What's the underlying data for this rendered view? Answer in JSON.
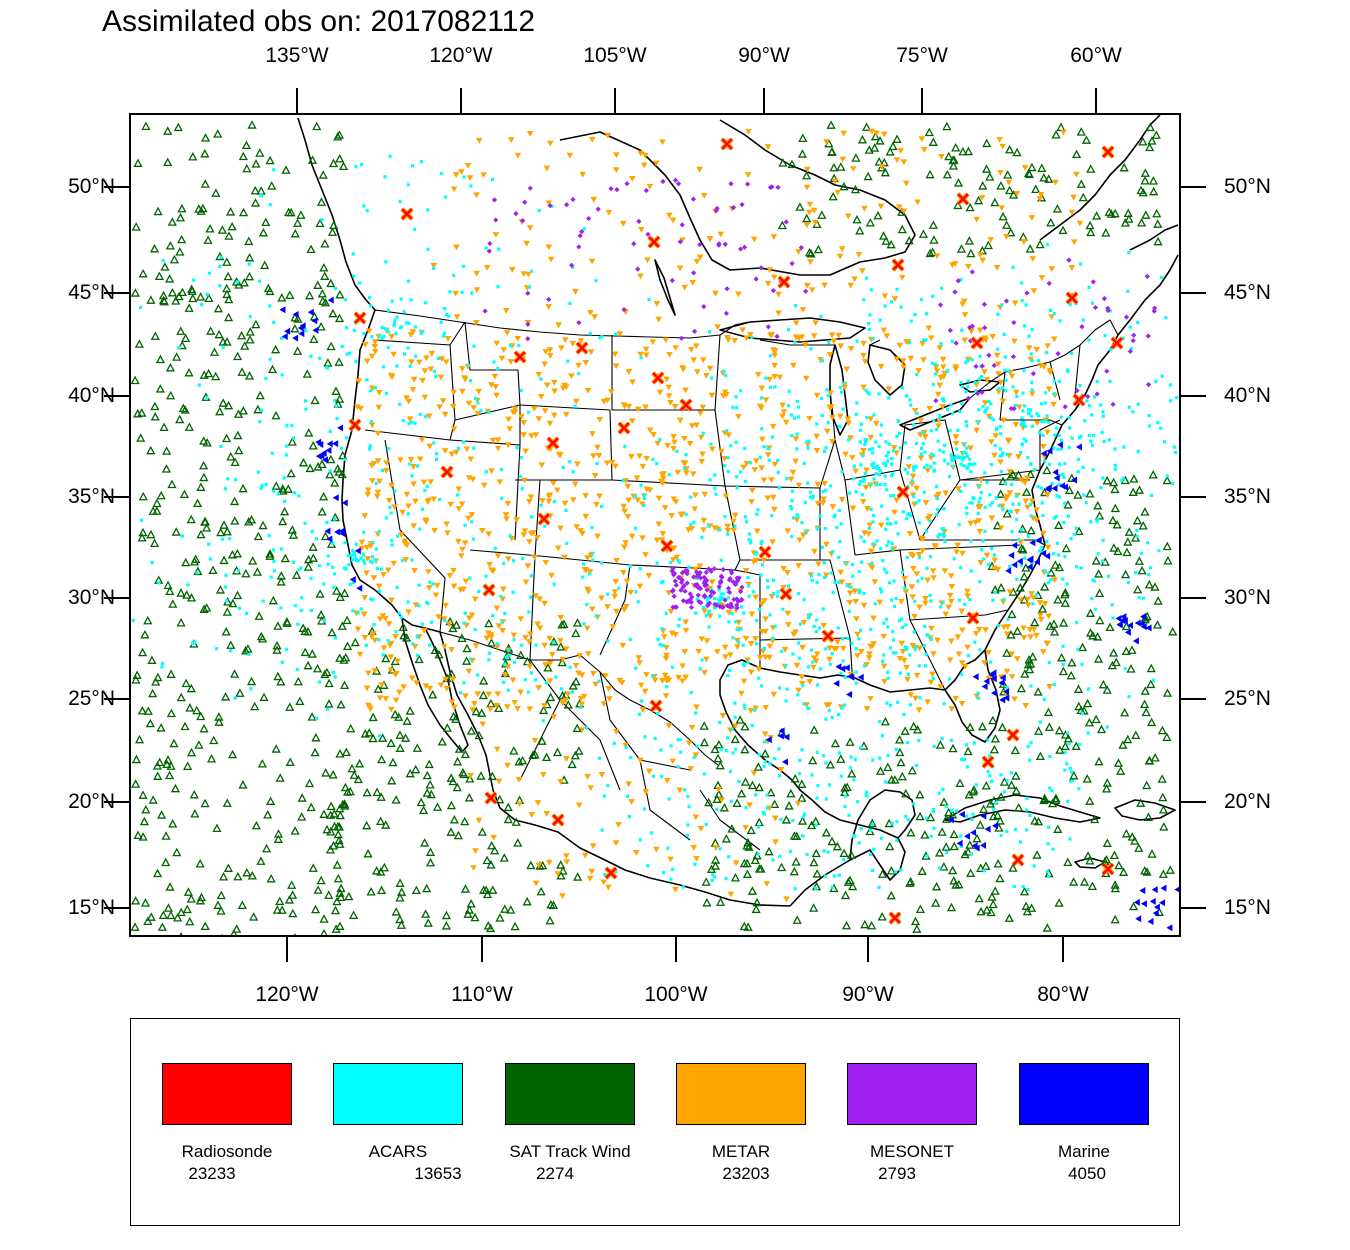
{
  "title": "Assimilated obs on: 2017082112",
  "axes": {
    "top_lon_labels": [
      "135°W",
      "120°W",
      "105°W",
      "90°W",
      "75°W",
      "60°W"
    ],
    "bottom_lon_labels": [
      "120°W",
      "110°W",
      "100°W",
      "90°W",
      "80°W"
    ],
    "lat_labels": [
      "50°N",
      "45°N",
      "40°N",
      "35°N",
      "30°N",
      "25°N",
      "20°N",
      "15°N"
    ]
  },
  "legend": [
    {
      "name": "Radiosonde",
      "count": "23233",
      "color": "#ff0000",
      "marker": "x-cross"
    },
    {
      "name": "ACARS",
      "count": "13653",
      "color": "#00ffff",
      "marker": "dot"
    },
    {
      "name": "SAT Track Wind",
      "count": "2274",
      "color": "#006400",
      "marker": "triangle-open"
    },
    {
      "name": "METAR",
      "count": "23203",
      "color": "#ffa500",
      "marker": "triangle-down"
    },
    {
      "name": "MESONET",
      "count": "2793",
      "color": "#a020f0",
      "marker": "diamond"
    },
    {
      "name": "Marine",
      "count": "4050",
      "color": "#0000ff",
      "marker": "triangle-left"
    }
  ]
}
